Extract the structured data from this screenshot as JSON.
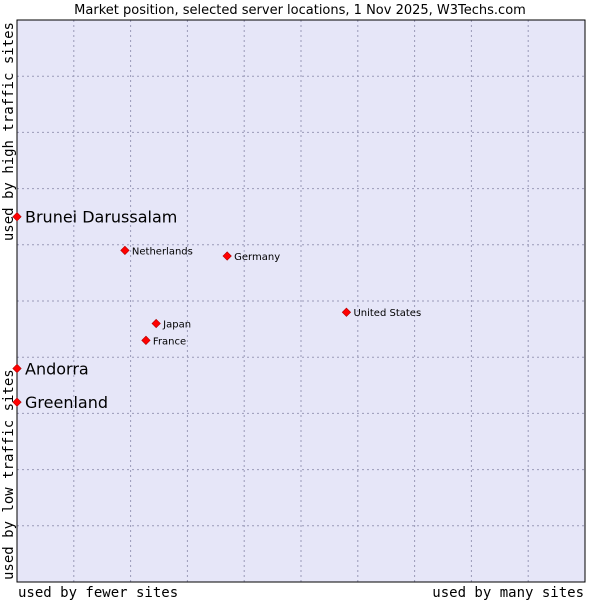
{
  "chart_data": {
    "type": "scatter",
    "title": "Market position, selected server locations, 1 Nov 2025, W3Techs.com",
    "xlabel_left": "used by fewer sites",
    "xlabel_right": "used by many sites",
    "ylabel_bottom": "used by low traffic sites",
    "ylabel_top": "used by high traffic sites",
    "xlim": [
      0,
      100
    ],
    "ylim": [
      0,
      100
    ],
    "grid": true,
    "colors": {
      "plot_bg": "#e6e6f8",
      "point": "#ff0000",
      "grid": "#9a9ab8"
    },
    "points": [
      {
        "name": "Brunei Darussalam",
        "x": 0,
        "y": 65,
        "highlight": true
      },
      {
        "name": "Netherlands",
        "x": 19,
        "y": 59,
        "highlight": false
      },
      {
        "name": "Germany",
        "x": 37,
        "y": 58,
        "highlight": false
      },
      {
        "name": "United States",
        "x": 58,
        "y": 48,
        "highlight": false
      },
      {
        "name": "Japan",
        "x": 24.5,
        "y": 46,
        "highlight": false
      },
      {
        "name": "France",
        "x": 22.7,
        "y": 43,
        "highlight": false
      },
      {
        "name": "Andorra",
        "x": 0,
        "y": 38,
        "highlight": true
      },
      {
        "name": "Greenland",
        "x": 0,
        "y": 32,
        "highlight": true
      }
    ]
  }
}
